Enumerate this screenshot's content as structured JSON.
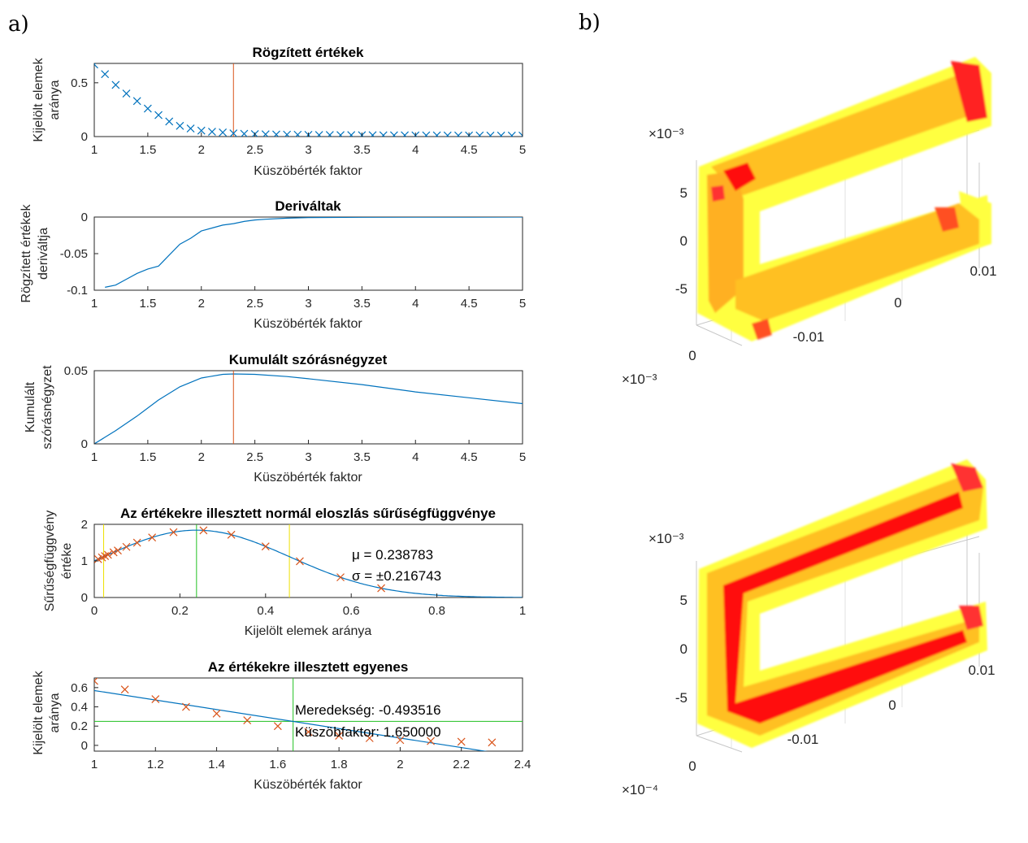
{
  "panel_labels": {
    "a": "a)",
    "b": "b)"
  },
  "chart_data": [
    {
      "type": "scatter",
      "title": "Rögzített értékek",
      "xlabel": "Küszöbérték faktor",
      "ylabel": [
        "Kijelölt elemek",
        "aránya"
      ],
      "xlim": [
        1,
        5
      ],
      "ylim": [
        0,
        0.68
      ],
      "xticks": [
        "1",
        "1.5",
        "2",
        "2.5",
        "3",
        "3.5",
        "4",
        "4.5",
        "5"
      ],
      "yticks": [
        "0",
        "0.5"
      ],
      "x": [
        1.0,
        1.1,
        1.2,
        1.3,
        1.4,
        1.5,
        1.6,
        1.7,
        1.8,
        1.9,
        2.0,
        2.1,
        2.2,
        2.3,
        2.4,
        2.5,
        2.6,
        2.7,
        2.8,
        2.9,
        3.0,
        3.1,
        3.2,
        3.3,
        3.4,
        3.5,
        3.6,
        3.7,
        3.8,
        3.9,
        4.0,
        4.1,
        4.2,
        4.3,
        4.4,
        4.5,
        4.6,
        4.7,
        4.8,
        4.9,
        5.0
      ],
      "y": [
        0.67,
        0.58,
        0.48,
        0.4,
        0.33,
        0.26,
        0.2,
        0.14,
        0.1,
        0.075,
        0.055,
        0.045,
        0.038,
        0.03,
        0.026,
        0.023,
        0.021,
        0.019,
        0.018,
        0.017,
        0.016,
        0.015,
        0.015,
        0.014,
        0.014,
        0.013,
        0.013,
        0.012,
        0.012,
        0.012,
        0.011,
        0.011,
        0.011,
        0.01,
        0.01,
        0.01,
        0.01,
        0.009,
        0.009,
        0.009,
        0.009
      ],
      "marker": "x",
      "color": "#0072BD",
      "vline": {
        "x": 2.3,
        "color": "#D95319"
      }
    },
    {
      "type": "line",
      "title": "Deriváltak",
      "xlabel": "Küszöbérték faktor",
      "ylabel": [
        "Rögzített értékek",
        "deriváltja"
      ],
      "xlim": [
        1,
        5
      ],
      "ylim": [
        -0.1,
        0
      ],
      "xticks": [
        "1",
        "1.5",
        "2",
        "2.5",
        "3",
        "3.5",
        "4",
        "4.5",
        "5"
      ],
      "yticks": [
        "-0.1",
        "-0.05",
        "0"
      ],
      "x": [
        1.1,
        1.2,
        1.3,
        1.4,
        1.5,
        1.6,
        1.7,
        1.8,
        1.9,
        2.0,
        2.1,
        2.2,
        2.3,
        2.4,
        2.5,
        2.6,
        2.8,
        3.0,
        3.5,
        4.0,
        4.5,
        5.0
      ],
      "y": [
        -0.096,
        -0.093,
        -0.085,
        -0.077,
        -0.071,
        -0.067,
        -0.052,
        -0.037,
        -0.029,
        -0.019,
        -0.015,
        -0.011,
        -0.009,
        -0.006,
        -0.004,
        -0.003,
        -0.0015,
        -0.0008,
        -0.0003,
        -0.0002,
        -0.0001,
        0
      ],
      "color": "#0072BD"
    },
    {
      "type": "line",
      "title": "Kumulált szórásnégyzet",
      "xlabel": "Küszöbérték faktor",
      "ylabel": [
        "Kumulált",
        "szórásnégyzet"
      ],
      "xlim": [
        1,
        5
      ],
      "ylim": [
        0,
        0.05
      ],
      "xticks": [
        "1",
        "1.5",
        "2",
        "2.5",
        "3",
        "3.5",
        "4",
        "4.5",
        "5"
      ],
      "yticks": [
        "0",
        "0.05"
      ],
      "x": [
        1.0,
        1.2,
        1.4,
        1.6,
        1.8,
        2.0,
        2.2,
        2.3,
        2.5,
        2.8,
        3.0,
        3.5,
        4.0,
        4.5,
        5.0
      ],
      "y": [
        0.0,
        0.009,
        0.019,
        0.03,
        0.039,
        0.045,
        0.0475,
        0.0478,
        0.0475,
        0.046,
        0.0445,
        0.0405,
        0.0355,
        0.0315,
        0.0275
      ],
      "color": "#0072BD",
      "vline": {
        "x": 2.3,
        "color": "#D95319"
      }
    },
    {
      "type": "line",
      "title": "Az értékekre illesztett normál eloszlás sűrűségfüggvénye",
      "xlabel": "Kijelölt elemek aránya",
      "ylabel": [
        "Sűrűségfüggvény",
        "értéke"
      ],
      "xlim": [
        0,
        1
      ],
      "ylim": [
        0,
        2
      ],
      "xticks": [
        "0",
        "0.2",
        "0.4",
        "0.6",
        "0.8",
        "1"
      ],
      "yticks": [
        "0",
        "1",
        "2"
      ],
      "mu": 0.238783,
      "sigma": 0.216743,
      "points_x": [
        0.009,
        0.018,
        0.025,
        0.032,
        0.045,
        0.055,
        0.075,
        0.1,
        0.135,
        0.185,
        0.255,
        0.32,
        0.4,
        0.48,
        0.575,
        0.67
      ],
      "points_color": "#D95319",
      "line_color": "#0072BD",
      "vlines": [
        {
          "x": 0.0219,
          "color": "#EDE000"
        },
        {
          "x": 0.238783,
          "color": "#20C020"
        },
        {
          "x": 0.4556,
          "color": "#EDE000"
        }
      ],
      "annotations": [
        "μ = 0.238783",
        "σ = ±0.216743"
      ]
    },
    {
      "type": "scatter",
      "title": "Az értékekre illesztett egyenes",
      "xlabel": "Küszöbérték faktor",
      "ylabel": [
        "Kijelölt elemek",
        "aránya"
      ],
      "xlim": [
        1,
        2.4
      ],
      "ylim": [
        -0.06,
        0.7
      ],
      "xticks": [
        "1",
        "1.2",
        "1.4",
        "1.6",
        "1.8",
        "2",
        "2.2",
        "2.4"
      ],
      "yticks": [
        "0",
        "0.2",
        "0.4",
        "0.6"
      ],
      "x": [
        1.0,
        1.1,
        1.2,
        1.3,
        1.4,
        1.5,
        1.6,
        1.7,
        1.8,
        1.9,
        2.0,
        2.1,
        2.2,
        2.3
      ],
      "y": [
        0.67,
        0.58,
        0.48,
        0.4,
        0.33,
        0.26,
        0.2,
        0.14,
        0.1,
        0.075,
        0.055,
        0.045,
        0.038,
        0.03
      ],
      "points_color": "#D95319",
      "fit_line": {
        "slope": -0.493516,
        "intercept": 1.063,
        "color": "#0072BD"
      },
      "vline": {
        "x": 1.65,
        "color": "#20C020"
      },
      "hline": {
        "y": 0.249,
        "color": "#20C020"
      },
      "annotations": [
        "Meredekség: -0.493516",
        "Küszöbfaktor: 1.650000"
      ]
    }
  ],
  "views_3d": [
    {
      "type": "surface3d",
      "exponent_z": "×10⁻³",
      "exponent_x": "×10⁻³",
      "zticks": [
        "5",
        "0",
        "-5"
      ],
      "xticks": [
        "-0.01",
        "0",
        "0.01"
      ],
      "floor_tick": "0",
      "colormap": [
        "#FFFF3C",
        "#FFC000",
        "#FF0000"
      ]
    },
    {
      "type": "surface3d",
      "exponent_z": "×10⁻³",
      "exponent_x": "×10⁻⁴",
      "zticks": [
        "5",
        "0",
        "-5"
      ],
      "xticks": [
        "-0.01",
        "0",
        "0.01"
      ],
      "floor_tick": "0",
      "colormap": [
        "#FFFF3C",
        "#FFC000",
        "#FF0000"
      ]
    }
  ]
}
